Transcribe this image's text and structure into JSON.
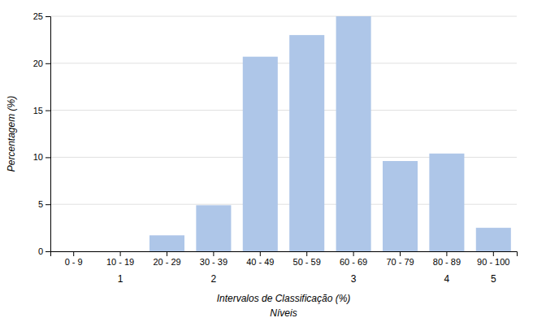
{
  "chart_data": {
    "type": "bar",
    "categories": [
      "0 - 9",
      "10 - 19",
      "20 - 29",
      "30 - 39",
      "40 - 49",
      "50 - 59",
      "60 - 69",
      "70 - 79",
      "80 - 89",
      "90 - 100"
    ],
    "values": [
      0,
      0,
      1.7,
      4.9,
      20.7,
      23.0,
      25.0,
      9.6,
      10.4,
      2.5
    ],
    "color": "#aec6e8",
    "ylabel": "Percentagem (%)",
    "xlabel": [
      "Intervalos de Classificação (%)",
      "Níveis"
    ],
    "annotations": [
      {
        "text": "1",
        "x": "10 - 19"
      },
      {
        "text": "2",
        "x": "30 - 39"
      },
      {
        "text": "3",
        "x": "60 - 69"
      },
      {
        "text": "4",
        "x": "80 - 89"
      },
      {
        "text": "5",
        "x": "90 - 100"
      }
    ],
    "ylim": [
      0,
      25
    ],
    "yticks": [
      0,
      5,
      10,
      15,
      20,
      25
    ],
    "grid": true
  }
}
